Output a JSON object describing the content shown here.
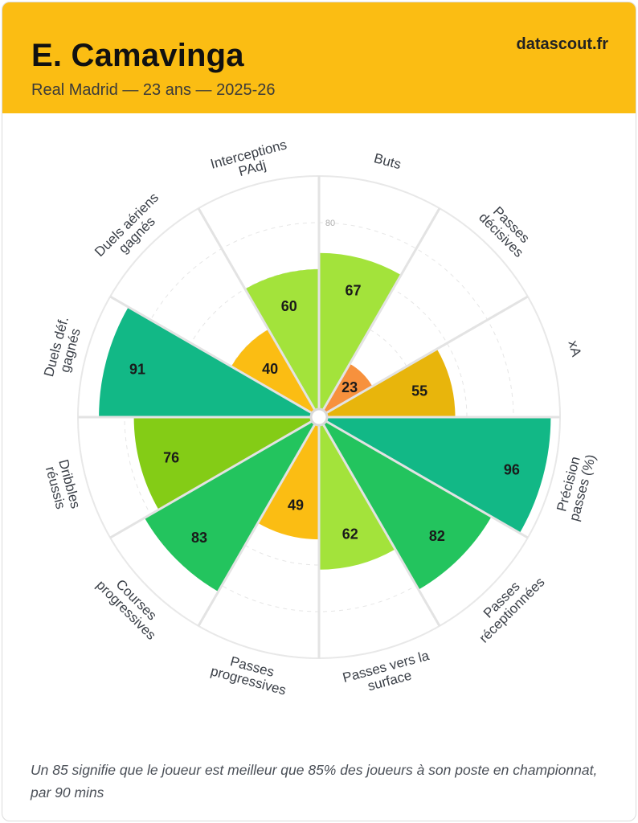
{
  "header": {
    "player_name": "E. Camavinga",
    "subtitle": "Real Madrid — 23 ans — 2025-26",
    "brand": "datascout.fr",
    "background_color": "#fbbd13"
  },
  "chart_data": {
    "type": "polar-bar",
    "title": "E. Camavinga",
    "scale": {
      "min": 0,
      "max": 100,
      "labeled_ring": "80"
    },
    "grid": true,
    "categories": [
      {
        "label": [
          "Buts"
        ],
        "value": 67,
        "color": "#a3e33b"
      },
      {
        "label": [
          "Passes",
          "décisives"
        ],
        "value": 23,
        "color": "#f7913d"
      },
      {
        "label": [
          "xA"
        ],
        "value": 55,
        "color": "#e8b50c"
      },
      {
        "label": [
          "Précision",
          "passes (%)"
        ],
        "value": 96,
        "color": "#12b886"
      },
      {
        "label": [
          "Passes",
          "réceptionnées"
        ],
        "value": 82,
        "color": "#23c45e"
      },
      {
        "label": [
          "Passes vers la",
          "surface"
        ],
        "value": 62,
        "color": "#a3e33b"
      },
      {
        "label": [
          "Passes",
          "progressives"
        ],
        "value": 49,
        "color": "#fbbd13"
      },
      {
        "label": [
          "Courses",
          "progressives"
        ],
        "value": 83,
        "color": "#23c45e"
      },
      {
        "label": [
          "Dribbles",
          "réussis"
        ],
        "value": 76,
        "color": "#84cc16"
      },
      {
        "label": [
          "Duels déf.",
          "gagnés"
        ],
        "value": 91,
        "color": "#12b886"
      },
      {
        "label": [
          "Duels aériens",
          "gagnés"
        ],
        "value": 40,
        "color": "#fbbd13"
      },
      {
        "label": [
          "Interceptions",
          "PAdj"
        ],
        "value": 60,
        "color": "#a3e33b"
      }
    ]
  },
  "footnote": "Un 85 signifie que le joueur est meilleur que 85% des joueurs à son poste en championnat, par 90 mins"
}
